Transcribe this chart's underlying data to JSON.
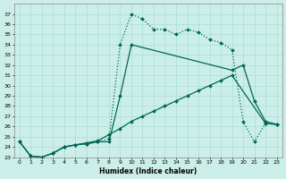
{
  "xlabel": "Humidex (Indice chaleur)",
  "background_color": "#cceee8",
  "grid_color": "#aaddda",
  "line_color": "#006655",
  "xlim": [
    -0.5,
    23.5
  ],
  "ylim": [
    23,
    38
  ],
  "yticks": [
    23,
    24,
    25,
    26,
    27,
    28,
    29,
    30,
    31,
    32,
    33,
    34,
    35,
    36,
    37
  ],
  "xticks": [
    0,
    1,
    2,
    3,
    4,
    5,
    6,
    7,
    8,
    9,
    10,
    11,
    12,
    13,
    14,
    15,
    16,
    17,
    18,
    19,
    20,
    21,
    22,
    23
  ],
  "series_dotted": {
    "x": [
      0,
      1,
      2,
      3,
      4,
      5,
      6,
      7,
      8,
      9,
      10,
      11,
      12,
      13,
      14,
      15,
      16,
      17,
      18,
      19,
      20,
      21,
      22,
      23
    ],
    "y": [
      24.5,
      23.1,
      23.0,
      23.4,
      24.0,
      24.2,
      24.3,
      24.5,
      24.8,
      34.0,
      37.0,
      36.5,
      35.5,
      35.5,
      35.0,
      35.5,
      35.2,
      34.5,
      34.2,
      33.5,
      26.5,
      24.5,
      26.3,
      26.2
    ]
  },
  "series_solid1": {
    "x": [
      0,
      1,
      2,
      3,
      4,
      5,
      6,
      7,
      8,
      9,
      10,
      19,
      20,
      21,
      22,
      23
    ],
    "y": [
      24.5,
      23.1,
      23.0,
      23.4,
      24.0,
      24.2,
      24.3,
      24.5,
      24.5,
      29.0,
      34.0,
      31.5,
      32.0,
      28.5,
      26.5,
      26.2
    ]
  },
  "series_solid2": {
    "x": [
      0,
      1,
      2,
      3,
      4,
      5,
      6,
      7,
      8,
      9,
      10,
      11,
      12,
      13,
      14,
      15,
      16,
      17,
      18,
      19,
      22,
      23
    ],
    "y": [
      24.5,
      23.1,
      23.0,
      23.4,
      24.0,
      24.2,
      24.4,
      24.6,
      25.2,
      25.8,
      26.5,
      27.0,
      27.5,
      28.0,
      28.5,
      29.0,
      29.5,
      30.0,
      30.5,
      31.0,
      26.3,
      26.2
    ]
  }
}
